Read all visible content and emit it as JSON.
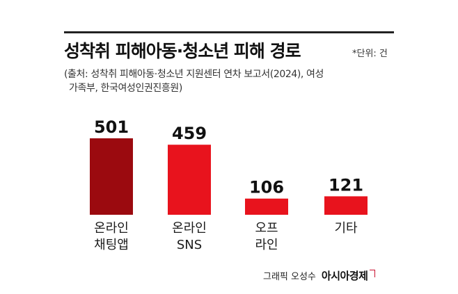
{
  "title": "성착취 피해아동·청소년 피해 경로",
  "unit": "*단위: 건",
  "source_line1": "(출처: 성착취 피해아동·청소년 지원센터 연차 보고서(2024), 여성",
  "source_line2": "가족부, 한국여성인권진흥원)",
  "credit": {
    "author": "그래픽 오성수",
    "brand": "아시아경제"
  },
  "colors": {
    "dark_red": "#9b0a0f",
    "red": "#e8131d",
    "rule": "#222222"
  },
  "chart_data": {
    "type": "bar",
    "title": "성착취 피해아동·청소년 피해 경로",
    "unit": "건",
    "categories": [
      [
        "온라인",
        "채팅앱"
      ],
      [
        "온라인",
        "SNS"
      ],
      [
        "오프",
        "라인"
      ],
      [
        "기타"
      ]
    ],
    "values": [
      501,
      459,
      106,
      121
    ],
    "bar_colors": [
      "#9b0a0f",
      "#e8131d",
      "#e8131d",
      "#e8131d"
    ],
    "ylim": [
      0,
      501
    ],
    "grid": false,
    "legend": "none"
  }
}
